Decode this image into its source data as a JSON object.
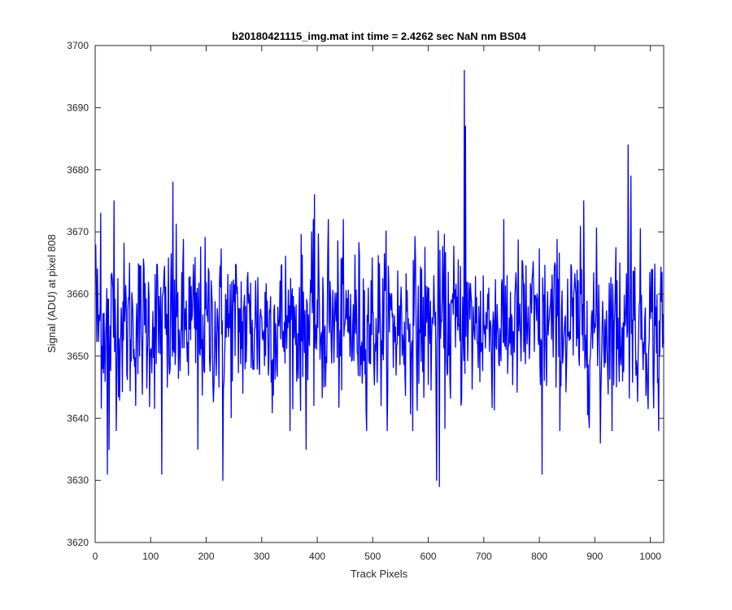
{
  "chart_data": {
    "type": "line",
    "title": "b20180421115_img.mat int time = 2.4262 sec  NaN nm BS04",
    "xlabel": "Track Pixels",
    "ylabel": "Signal (ADU) at pixel 808",
    "xlim": [
      0,
      1024
    ],
    "ylim": [
      3620,
      3700
    ],
    "xticks": [
      0,
      100,
      200,
      300,
      400,
      500,
      600,
      700,
      800,
      900,
      1000
    ],
    "yticks": [
      3620,
      3630,
      3640,
      3650,
      3660,
      3670,
      3680,
      3690,
      3700
    ],
    "grid": false,
    "legend": "none",
    "series": [
      {
        "color": "#0000ff",
        "n_points": 1024,
        "baseline": 3655,
        "noise_sd": 6.5,
        "notable_points": [
          {
            "x": 1,
            "y": 3668
          },
          {
            "x": 10,
            "y": 3673
          },
          {
            "x": 22,
            "y": 3631
          },
          {
            "x": 25,
            "y": 3635
          },
          {
            "x": 34,
            "y": 3675
          },
          {
            "x": 120,
            "y": 3631
          },
          {
            "x": 130,
            "y": 3645
          },
          {
            "x": 140,
            "y": 3678
          },
          {
            "x": 185,
            "y": 3635
          },
          {
            "x": 230,
            "y": 3630
          },
          {
            "x": 380,
            "y": 3635
          },
          {
            "x": 395,
            "y": 3676
          },
          {
            "x": 420,
            "y": 3672
          },
          {
            "x": 615,
            "y": 3630
          },
          {
            "x": 620,
            "y": 3629
          },
          {
            "x": 665,
            "y": 3696
          },
          {
            "x": 667,
            "y": 3687
          },
          {
            "x": 805,
            "y": 3631
          },
          {
            "x": 880,
            "y": 3675
          },
          {
            "x": 910,
            "y": 3636
          },
          {
            "x": 960,
            "y": 3684
          },
          {
            "x": 965,
            "y": 3679
          },
          {
            "x": 1015,
            "y": 3638
          }
        ]
      }
    ]
  },
  "colors": {
    "axes": "#262626",
    "line": "#0000ff",
    "background": "#ffffff"
  }
}
